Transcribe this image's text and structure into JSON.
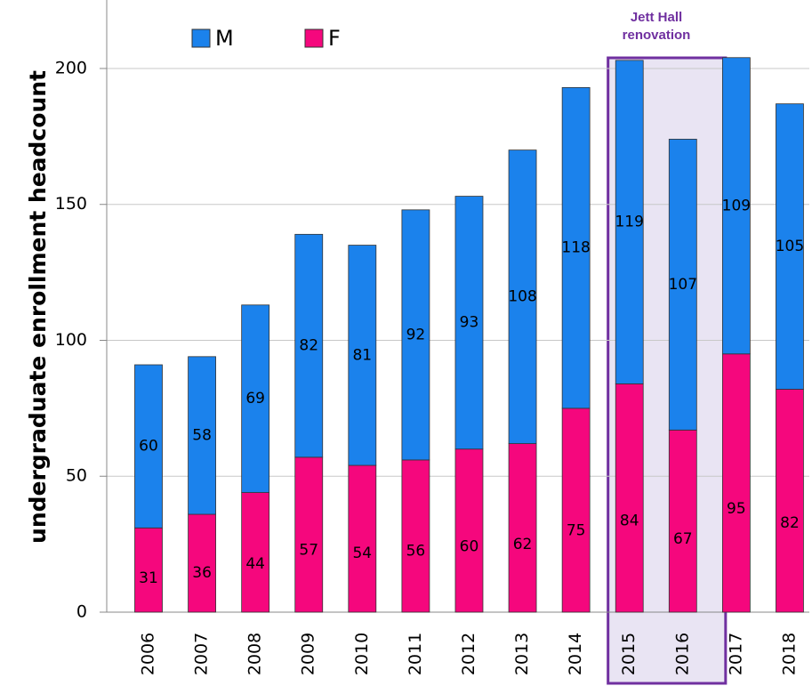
{
  "chart_data": {
    "type": "stacked_bar",
    "y_label": "undergraduate enrollment headcount",
    "categories": [
      "2006",
      "2007",
      "2008",
      "2009",
      "2010",
      "2011",
      "2012",
      "2013",
      "2014",
      "2015",
      "2016",
      "2017",
      "2018"
    ],
    "series": [
      {
        "name": "F",
        "color": "#f5077d",
        "values": [
          31,
          36,
          44,
          57,
          54,
          56,
          60,
          62,
          75,
          84,
          67,
          95,
          82
        ]
      },
      {
        "name": "M",
        "color": "#1b82ec",
        "values": [
          60,
          58,
          69,
          82,
          81,
          92,
          93,
          108,
          118,
          119,
          107,
          109,
          105
        ]
      }
    ],
    "legend_order": [
      1,
      0
    ],
    "legend": "top",
    "ylim": [
      0,
      225
    ],
    "yticks": [
      0,
      50,
      100,
      150,
      200
    ],
    "grid": true,
    "annotations": [
      {
        "text": "Jett Hall renovation",
        "from": "2015",
        "to": "2016",
        "color": "#7030a0"
      }
    ]
  }
}
